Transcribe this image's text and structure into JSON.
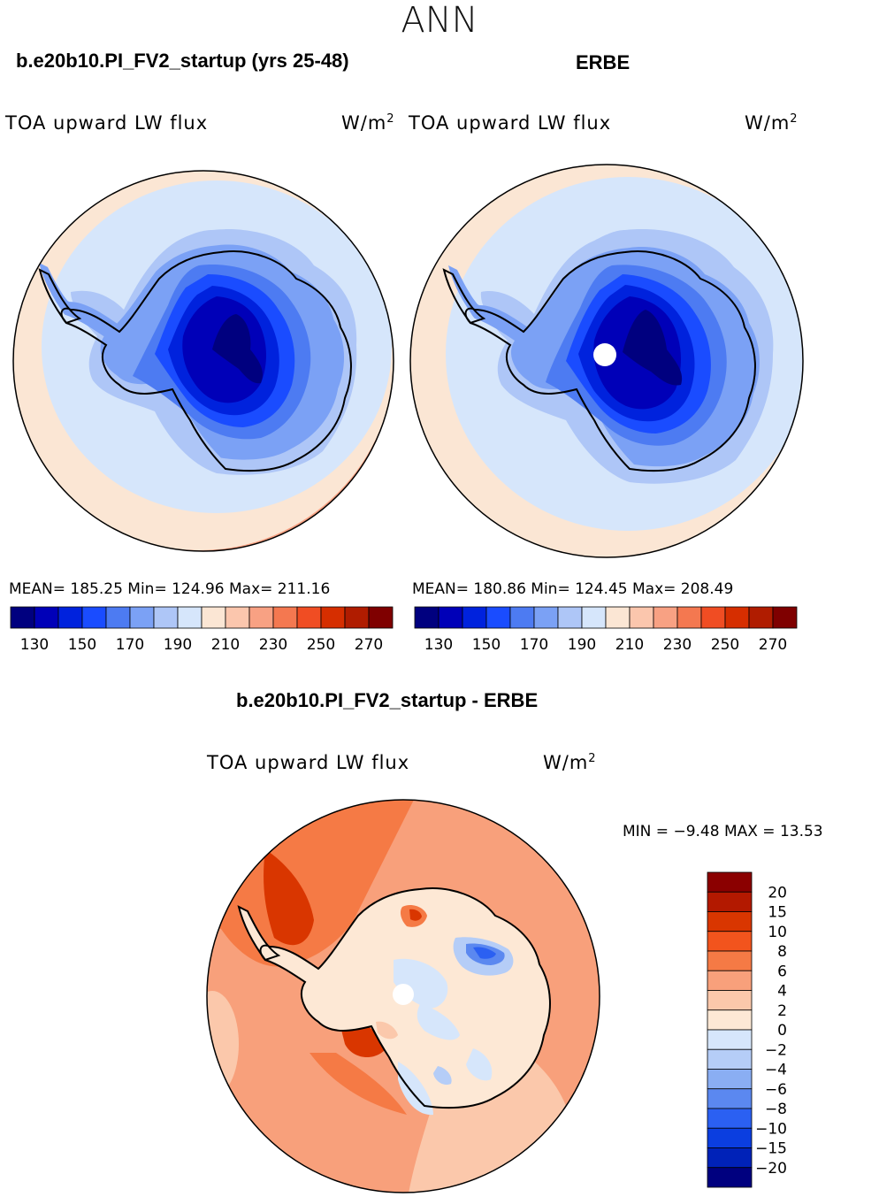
{
  "page": {
    "season": "ANN"
  },
  "panels": {
    "left": {
      "case": "b.e20b10.PI_FV2_startup (yrs 25-48)",
      "variable": "TOA upward LW flux",
      "units": "W/m",
      "units_exp": "2",
      "stats": "MEAN= 185.25   Min= 124.96   Max= 211.16"
    },
    "right": {
      "case": "ERBE",
      "variable": "TOA upward LW flux",
      "units": "W/m",
      "units_exp": "2",
      "stats": "MEAN= 180.86   Min= 124.45   Max= 208.49"
    },
    "diff": {
      "case": "b.e20b10.PI_FV2_startup - ERBE",
      "variable": "TOA upward LW flux",
      "units": "W/m",
      "units_exp": "2",
      "minmax": "MIN =   −9.48 MAX =   13.53"
    }
  },
  "chart_data": [
    {
      "type": "heatmap",
      "title": "b.e20b10.PI_FV2_startup (yrs 25-48)",
      "field": "TOA upward LW flux",
      "units": "W/m2",
      "projection": "south polar stereographic",
      "mean": 185.25,
      "min": 124.96,
      "max": 211.16,
      "colorbar_ticks": [
        "130",
        "150",
        "170",
        "190",
        "210",
        "230",
        "250",
        "270"
      ],
      "colorbar_colors": [
        "#00007f",
        "#0000b8",
        "#0022dd",
        "#1a4cff",
        "#4d7bf2",
        "#7ba1f5",
        "#aec6f7",
        "#d6e6fb",
        "#fbe6d4",
        "#fbc6ad",
        "#f8a183",
        "#f47850",
        "#f04d23",
        "#d62e00",
        "#b01c00",
        "#7f0000"
      ],
      "contour_levels": [
        135,
        145,
        155,
        165,
        175,
        185,
        195,
        205
      ]
    },
    {
      "type": "heatmap",
      "title": "ERBE",
      "field": "TOA upward LW flux",
      "units": "W/m2",
      "projection": "south polar stereographic",
      "mean": 180.86,
      "min": 124.45,
      "max": 208.49,
      "colorbar_ticks": [
        "130",
        "150",
        "170",
        "190",
        "210",
        "230",
        "250",
        "270"
      ],
      "colorbar_colors": [
        "#00007f",
        "#0000b8",
        "#0022dd",
        "#1a4cff",
        "#4d7bf2",
        "#7ba1f5",
        "#aec6f7",
        "#d6e6fb",
        "#fbe6d4",
        "#fbc6ad",
        "#f8a183",
        "#f47850",
        "#f04d23",
        "#d62e00",
        "#b01c00",
        "#7f0000"
      ],
      "contour_levels": [
        135,
        145,
        155,
        165,
        175,
        185,
        195,
        205
      ]
    },
    {
      "type": "heatmap",
      "title": "b.e20b10.PI_FV2_startup - ERBE",
      "field": "TOA upward LW flux",
      "units": "W/m2",
      "projection": "south polar stereographic",
      "min": -9.48,
      "max": 13.53,
      "colorbar_labels": [
        "20",
        "15",
        "10",
        "8",
        "6",
        "4",
        "2",
        "0",
        "−2",
        "−4",
        "−6",
        "−8",
        "−10",
        "−15",
        "−20"
      ],
      "colorbar_colors": [
        "#8b0000",
        "#b31900",
        "#d93600",
        "#f2541d",
        "#f57a45",
        "#f8a07b",
        "#fbc8ab",
        "#fde8d5",
        "#d6e6fb",
        "#b5cdf7",
        "#8aaef3",
        "#5b88f0",
        "#2b60f2",
        "#0b3ee0",
        "#0022b8",
        "#00007f"
      ]
    }
  ]
}
